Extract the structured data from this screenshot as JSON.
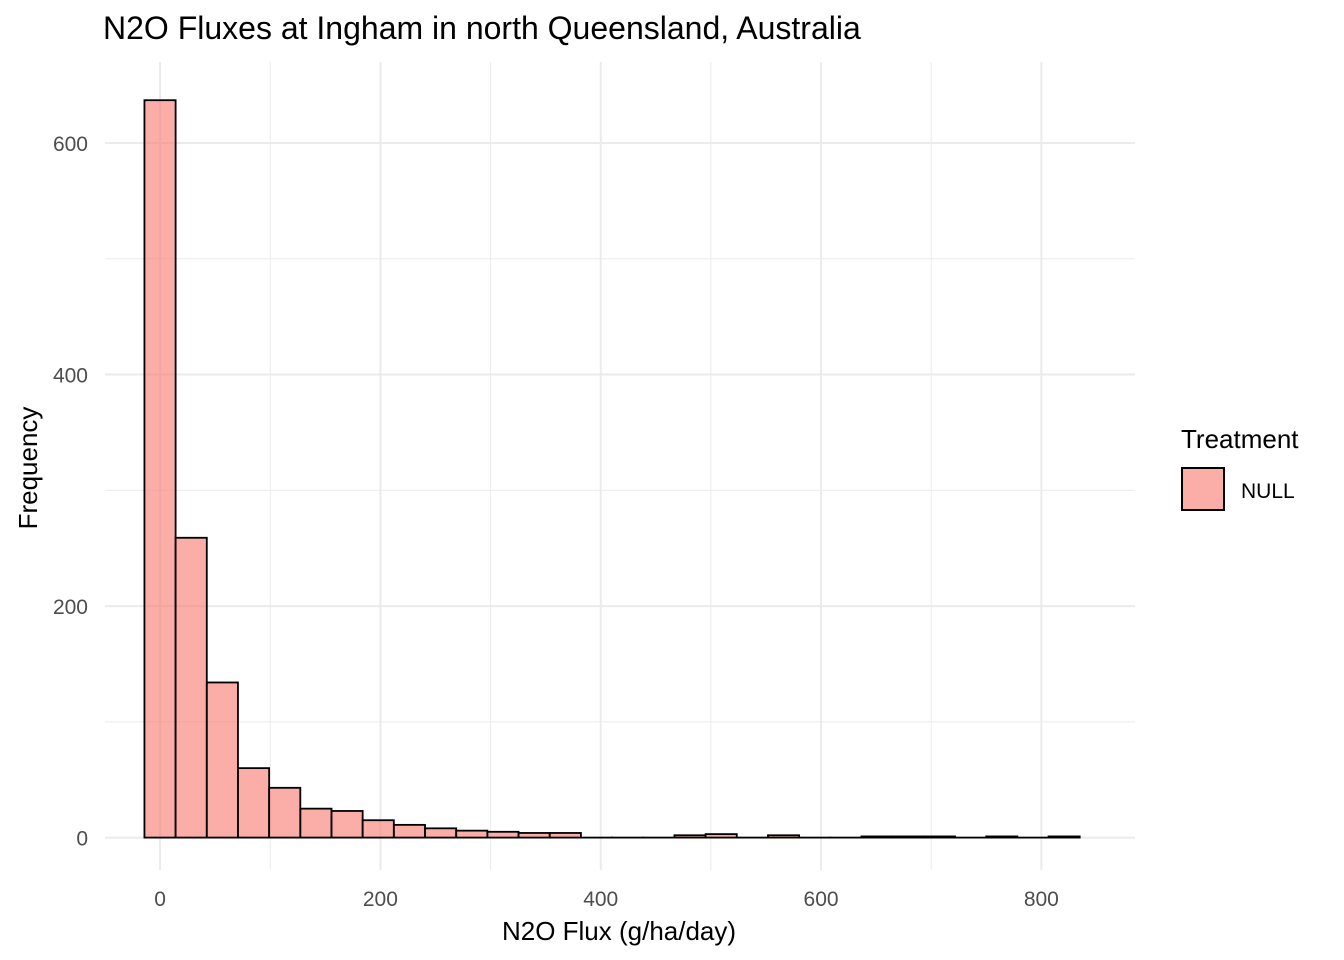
{
  "chart_data": {
    "type": "bar",
    "title": "N2O Fluxes at Ingham in north Queensland, Australia",
    "xlabel": "N2O Flux (g/ha/day)",
    "ylabel": "Frequency",
    "xlim": [
      -50,
      885
    ],
    "ylim": [
      -28,
      670
    ],
    "x_ticks": [
      0,
      200,
      400,
      600,
      800
    ],
    "y_ticks": [
      0,
      200,
      400,
      600
    ],
    "x_minor_ticks": [
      100,
      300,
      500,
      700
    ],
    "y_minor_ticks": [
      100,
      300,
      500
    ],
    "grid": true,
    "legend_position": "right",
    "bin_width": 28.3,
    "bins": [
      {
        "x0": -14.2,
        "count": 637
      },
      {
        "x0": 14.1,
        "count": 259
      },
      {
        "x0": 42.4,
        "count": 134
      },
      {
        "x0": 70.7,
        "count": 60
      },
      {
        "x0": 99.0,
        "count": 43
      },
      {
        "x0": 127.3,
        "count": 25
      },
      {
        "x0": 155.6,
        "count": 23
      },
      {
        "x0": 183.9,
        "count": 15
      },
      {
        "x0": 212.2,
        "count": 11
      },
      {
        "x0": 240.5,
        "count": 8
      },
      {
        "x0": 268.8,
        "count": 6
      },
      {
        "x0": 297.1,
        "count": 5
      },
      {
        "x0": 325.4,
        "count": 4
      },
      {
        "x0": 353.7,
        "count": 4
      },
      {
        "x0": 382.0,
        "count": 0
      },
      {
        "x0": 410.3,
        "count": 0
      },
      {
        "x0": 438.6,
        "count": 0
      },
      {
        "x0": 466.9,
        "count": 2
      },
      {
        "x0": 495.2,
        "count": 3
      },
      {
        "x0": 523.5,
        "count": 0
      },
      {
        "x0": 551.8,
        "count": 2
      },
      {
        "x0": 580.1,
        "count": 0
      },
      {
        "x0": 608.4,
        "count": 0
      },
      {
        "x0": 636.7,
        "count": 1
      },
      {
        "x0": 665.0,
        "count": 1
      },
      {
        "x0": 693.3,
        "count": 1
      },
      {
        "x0": 721.6,
        "count": 0
      },
      {
        "x0": 749.9,
        "count": 1
      },
      {
        "x0": 778.2,
        "count": 0
      },
      {
        "x0": 806.5,
        "count": 1
      }
    ],
    "series": [
      {
        "name": "NULL",
        "color": "#F8766D"
      }
    ],
    "legend": {
      "title": "Treatment",
      "entries": [
        "NULL"
      ]
    },
    "fill_color": "#F8766D",
    "fill_opacity": 0.6,
    "outline_color": "#000000",
    "grid_color": "#ebebeb"
  }
}
